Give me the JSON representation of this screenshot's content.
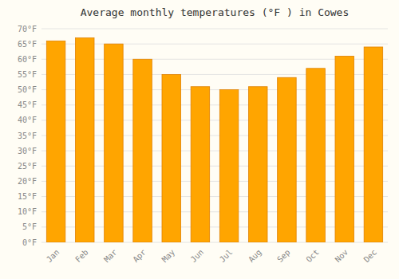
{
  "chart_data": {
    "type": "bar",
    "title": "Average monthly temperatures (°F ) in Cowes",
    "categories": [
      "Jan",
      "Feb",
      "Mar",
      "Apr",
      "May",
      "Jun",
      "Jul",
      "Aug",
      "Sep",
      "Oct",
      "Nov",
      "Dec"
    ],
    "values": [
      66,
      67,
      65,
      60,
      55,
      51,
      50,
      51,
      54,
      57,
      61,
      64
    ],
    "color": "#FFA500",
    "ylim": [
      0,
      70
    ],
    "yticks": [
      {
        "value": 0,
        "label": "0°F"
      },
      {
        "value": 5,
        "label": "5°F"
      },
      {
        "value": 10,
        "label": "10°F"
      },
      {
        "value": 15,
        "label": "15°F"
      },
      {
        "value": 20,
        "label": "20°F"
      },
      {
        "value": 25,
        "label": "25°F"
      },
      {
        "value": 30,
        "label": "30°F"
      },
      {
        "value": 35,
        "label": "35°F"
      },
      {
        "value": 40,
        "label": "40°F"
      },
      {
        "value": 45,
        "label": "45°F"
      },
      {
        "value": 50,
        "label": "50°F"
      },
      {
        "value": 55,
        "label": "55°F"
      },
      {
        "value": 60,
        "label": "60°F"
      },
      {
        "value": 65,
        "label": "65°F"
      },
      {
        "value": 70,
        "label": "70°F"
      }
    ],
    "grid": true
  }
}
